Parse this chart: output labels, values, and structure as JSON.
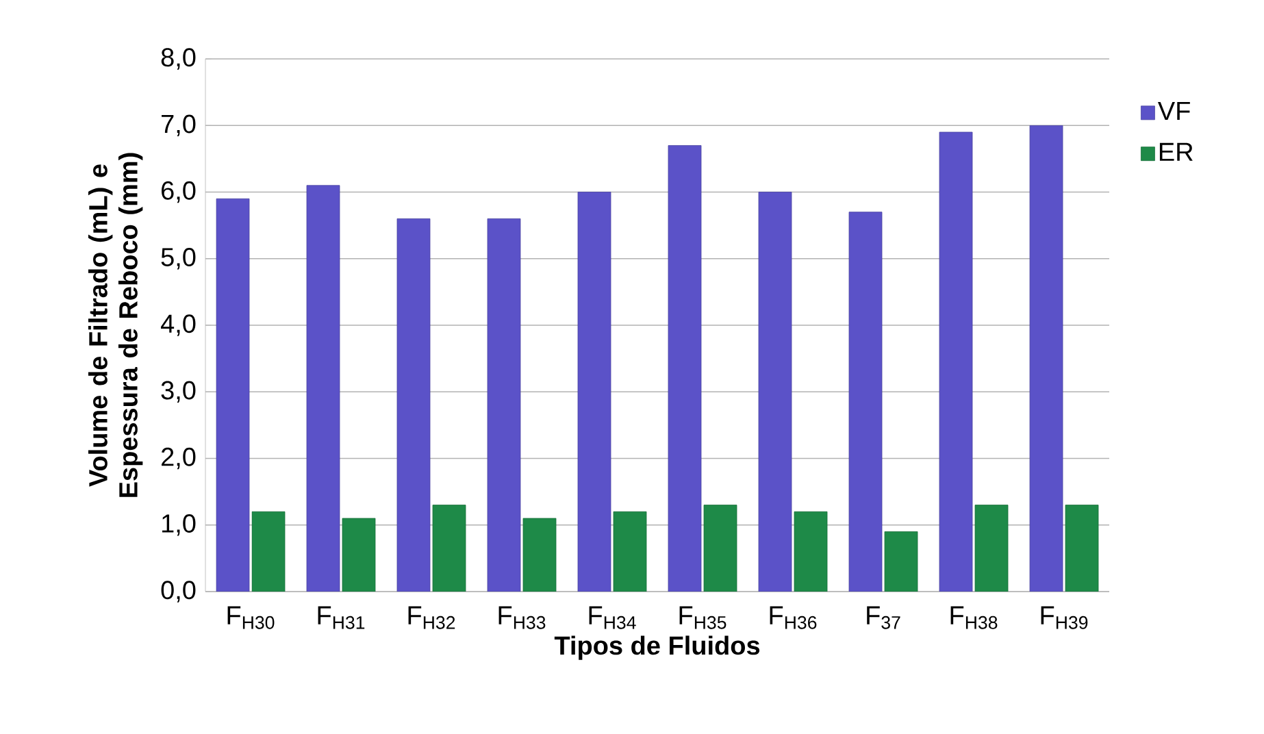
{
  "chart_data": {
    "type": "bar",
    "xlabel": "Tipos de Fluidos",
    "ylabel": "Volume de Filtrado (mL) e Espessura de Reboco (mm)",
    "categories": [
      "F$_{H30}$",
      "F$_{H31}$",
      "F$_{H32}$",
      "F$_{H33}$",
      "F$_{H34}$",
      "F$_{H35}$",
      "F$_{H36}$",
      "F$_{37}$",
      "F$_{H38}$",
      "F$_{H39}$"
    ],
    "series": [
      {
        "name": "VF",
        "color": "#5b52c8",
        "values": [
          5.9,
          6.1,
          5.6,
          5.6,
          6.0,
          6.7,
          6.0,
          5.7,
          6.9,
          7.0
        ]
      },
      {
        "name": "ER",
        "color": "#1e8a48",
        "values": [
          1.2,
          1.1,
          1.3,
          1.1,
          1.2,
          1.3,
          1.2,
          0.9,
          1.3,
          1.3
        ]
      }
    ],
    "ylim": [
      0,
      8
    ],
    "yticks": [
      {
        "value": 0,
        "label": "0,0"
      },
      {
        "value": 1,
        "label": "1,0"
      },
      {
        "value": 2,
        "label": "2,0"
      },
      {
        "value": 3,
        "label": "3,0"
      },
      {
        "value": 4,
        "label": "4,0"
      },
      {
        "value": 5,
        "label": "5,0"
      },
      {
        "value": 6,
        "label": "6,0"
      },
      {
        "value": 7,
        "label": "7,0"
      },
      {
        "value": 8,
        "label": "8,0"
      }
    ],
    "grid": "y",
    "legend": "right"
  }
}
